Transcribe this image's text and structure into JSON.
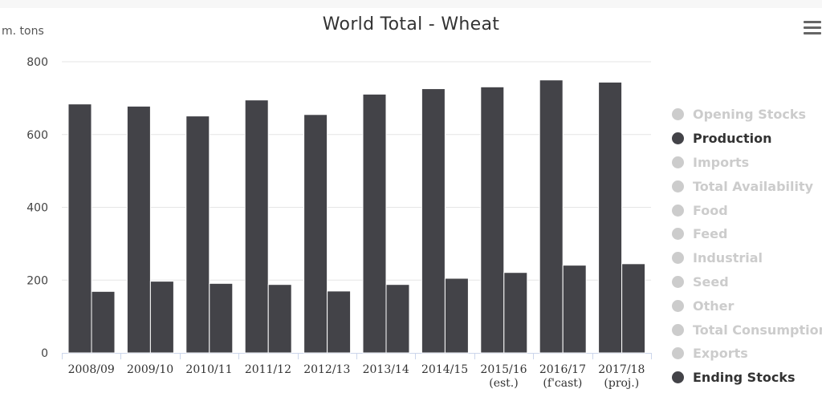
{
  "title": "World Total - Wheat",
  "unit_label": "m. tons",
  "menu_icon": "hamburger-menu-icon",
  "colors": {
    "series": "#434348",
    "inactive": "#cccccc",
    "active_text": "#333333",
    "grid": "#e6e6e6",
    "axis": "#ccd6eb"
  },
  "legend": {
    "items": [
      {
        "label": "Opening Stocks",
        "active": false
      },
      {
        "label": "Production",
        "active": true
      },
      {
        "label": "Imports",
        "active": false
      },
      {
        "label": "Total Availability",
        "active": false
      },
      {
        "label": "Food",
        "active": false
      },
      {
        "label": "Feed",
        "active": false
      },
      {
        "label": "Industrial",
        "active": false
      },
      {
        "label": "Seed",
        "active": false
      },
      {
        "label": "Other",
        "active": false
      },
      {
        "label": "Total Consumption",
        "active": false
      },
      {
        "label": "Exports",
        "active": false
      },
      {
        "label": "Ending Stocks",
        "active": true
      }
    ]
  },
  "chart_data": {
    "type": "bar",
    "categories": [
      [
        "2008/09"
      ],
      [
        "2009/10"
      ],
      [
        "2010/11"
      ],
      [
        "2011/12"
      ],
      [
        "2012/13"
      ],
      [
        "2013/14"
      ],
      [
        "2014/15"
      ],
      [
        "2015/16",
        "(est.)"
      ],
      [
        "2016/17",
        "(f'cast)"
      ],
      [
        "2017/18",
        "(proj.)"
      ]
    ],
    "series": [
      {
        "name": "Production",
        "values": [
          684,
          678,
          651,
          695,
          655,
          711,
          726,
          731,
          750,
          744
        ]
      },
      {
        "name": "Ending Stocks",
        "values": [
          169,
          197,
          191,
          188,
          170,
          188,
          205,
          221,
          241,
          245
        ]
      }
    ],
    "ylabel": "m. tons",
    "ylim": [
      0,
      800
    ],
    "yticks": [
      0,
      200,
      400,
      600,
      800
    ],
    "grid": true,
    "legend_position": "right"
  }
}
